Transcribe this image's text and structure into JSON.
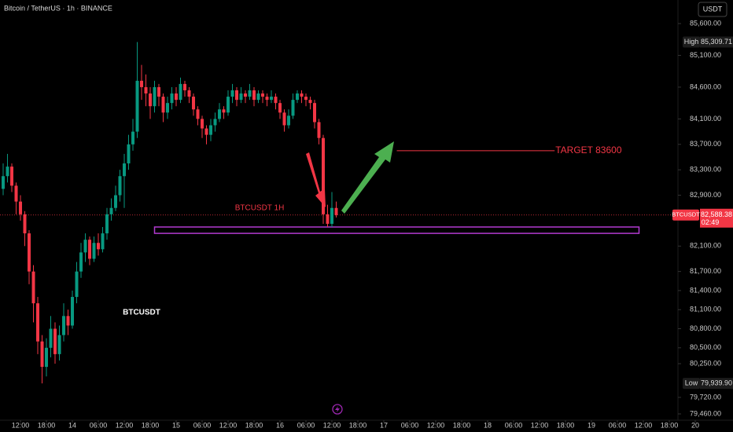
{
  "chart_data": {
    "type": "candlestick",
    "title": "Bitcoin / TetherUS · 1h · BINANCE",
    "currency": "USDT",
    "symbol_label": "BTCUSDT",
    "annotations": {
      "chart_label": "BTCUSDT",
      "timeframe_label": "BTCUSDT 1H",
      "target": {
        "label": "TARGET 83600",
        "value": 83600,
        "x": [
          91,
          127.5
        ]
      },
      "zone": {
        "y": [
          82300,
          82400
        ],
        "x": [
          35,
          147
        ]
      }
    },
    "up_color": "#089981",
    "down_color": "#f23645",
    "open": [
      83000,
      83200,
      83350,
      83050,
      82800,
      82600,
      82300,
      81700,
      81200,
      80600,
      80200,
      80500,
      80800,
      80400,
      80700,
      81000,
      80850,
      81300,
      81700,
      82000,
      82200,
      81900,
      82150,
      82050,
      82300,
      82600,
      82700,
      82900,
      83200,
      83400,
      83700,
      83900,
      84700,
      84600,
      84500,
      84300,
      84600,
      84450,
      84200,
      84350,
      84500,
      84400,
      84650,
      84550,
      84450,
      84250,
      84100,
      83950,
      83850,
      84000,
      84100,
      84250,
      84200,
      84450,
      84550,
      84400,
      84500,
      84450,
      84550,
      84400,
      84500,
      84450,
      84400,
      84450,
      84350,
      84200,
      84000,
      84150,
      84400,
      84500,
      84450,
      84400,
      84350,
      84050,
      83800,
      82600,
      82450,
      82700
    ],
    "high": [
      83400,
      83550,
      83400,
      83100,
      82900,
      82650,
      82350,
      81800,
      81300,
      80700,
      80650,
      81000,
      80900,
      80850,
      81200,
      81100,
      81400,
      81850,
      82150,
      82300,
      82250,
      82250,
      82300,
      82400,
      82700,
      82850,
      83050,
      83300,
      83550,
      83850,
      84100,
      85309.71,
      84950,
      84800,
      84600,
      84700,
      84650,
      84500,
      84450,
      84600,
      84600,
      84750,
      84700,
      84600,
      84500,
      84300,
      84150,
      84000,
      84100,
      84200,
      84350,
      84300,
      84550,
      84650,
      84600,
      84600,
      84550,
      84650,
      84600,
      84550,
      84550,
      84500,
      84550,
      84500,
      84400,
      84250,
      84250,
      84500,
      84550,
      84550,
      84500,
      84450,
      84400,
      84100,
      83850,
      82750,
      82950,
      82800
    ],
    "low": [
      82900,
      83100,
      82950,
      82600,
      82500,
      82100,
      81500,
      80900,
      80400,
      79939.9,
      80050,
      80350,
      80250,
      80300,
      80600,
      80700,
      80800,
      81200,
      81600,
      81850,
      81800,
      81850,
      81950,
      82000,
      82200,
      82500,
      82650,
      82800,
      82700,
      83300,
      83600,
      83800,
      84400,
      84300,
      84100,
      84200,
      84300,
      84050,
      84100,
      84250,
      84300,
      84350,
      84450,
      84350,
      84150,
      84000,
      83800,
      83700,
      83750,
      83900,
      84050,
      84100,
      84150,
      84350,
      84300,
      84350,
      84350,
      84400,
      84300,
      84350,
      84350,
      84300,
      84350,
      84250,
      84100,
      83900,
      83950,
      84100,
      84350,
      84350,
      84300,
      84250,
      83950,
      83700,
      82450,
      82400,
      82400,
      82550
    ],
    "close": [
      83200,
      83350,
      83050,
      82800,
      82600,
      82300,
      81700,
      81200,
      80600,
      80200,
      80500,
      80800,
      80400,
      80700,
      81000,
      80850,
      81300,
      81700,
      82000,
      82200,
      81900,
      82150,
      82050,
      82300,
      82600,
      82700,
      82900,
      83200,
      83400,
      83700,
      83900,
      84700,
      84600,
      84500,
      84300,
      84600,
      84450,
      84200,
      84350,
      84500,
      84400,
      84650,
      84550,
      84450,
      84250,
      84100,
      83950,
      83850,
      84000,
      84100,
      84250,
      84200,
      84450,
      84550,
      84400,
      84500,
      84450,
      84550,
      84400,
      84500,
      84450,
      84400,
      84450,
      84350,
      84200,
      84000,
      84150,
      84400,
      84500,
      84450,
      84400,
      84350,
      84050,
      83800,
      82600,
      82450,
      82700,
      82588.38
    ],
    "last_price": {
      "value": 82588.38,
      "label": "82,588.38",
      "countdown": "02:49"
    },
    "high_marker": {
      "tag": "High",
      "value": 85309.71,
      "label": "85,309.71"
    },
    "low_marker": {
      "tag": "Low",
      "value": 79939.9,
      "label": "79,939.90"
    },
    "ylim": [
      79360.8,
      85970.6
    ],
    "yticks": [
      {
        "value": 85600,
        "label": "85,600.00"
      },
      {
        "value": 85100,
        "label": "85,100.00"
      },
      {
        "value": 84600,
        "label": "84,600.00"
      },
      {
        "value": 84100,
        "label": "84,100.00"
      },
      {
        "value": 83700,
        "label": "83,700.00"
      },
      {
        "value": 83300,
        "label": "83,300.00"
      },
      {
        "value": 82900,
        "label": "82,900.00"
      },
      {
        "value": 82100,
        "label": "82,100.00"
      },
      {
        "value": 81700,
        "label": "81,700.00"
      },
      {
        "value": 81400,
        "label": "81,400.00"
      },
      {
        "value": 81100,
        "label": "81,100.00"
      },
      {
        "value": 80800,
        "label": "80,800.00"
      },
      {
        "value": 80500,
        "label": "80,500.00"
      },
      {
        "value": 80250,
        "label": "80,250.00"
      },
      {
        "value": 79720,
        "label": "79,720.00"
      },
      {
        "value": 79460,
        "label": "79,460.00"
      }
    ],
    "xlim": [
      -0.73,
      168.73
    ],
    "xticks": [
      {
        "value": 4,
        "label": "12:00"
      },
      {
        "value": 10,
        "label": "18:00"
      },
      {
        "value": 16,
        "label": "14"
      },
      {
        "value": 22,
        "label": "06:00"
      },
      {
        "value": 28,
        "label": "12:00"
      },
      {
        "value": 34,
        "label": "18:00"
      },
      {
        "value": 40,
        "label": "15"
      },
      {
        "value": 46,
        "label": "06:00"
      },
      {
        "value": 52,
        "label": "12:00"
      },
      {
        "value": 58,
        "label": "18:00"
      },
      {
        "value": 64,
        "label": "16"
      },
      {
        "value": 70,
        "label": "06:00"
      },
      {
        "value": 76,
        "label": "12:00"
      },
      {
        "value": 82,
        "label": "18:00"
      },
      {
        "value": 88,
        "label": "17"
      },
      {
        "value": 94,
        "label": "06:00"
      },
      {
        "value": 100,
        "label": "12:00"
      },
      {
        "value": 106,
        "label": "18:00"
      },
      {
        "value": 112,
        "label": "18"
      },
      {
        "value": 118,
        "label": "06:00"
      },
      {
        "value": 124,
        "label": "12:00"
      },
      {
        "value": 130,
        "label": "18:00"
      },
      {
        "value": 136,
        "label": "19"
      },
      {
        "value": 142,
        "label": "06:00"
      },
      {
        "value": 148,
        "label": "12:00"
      },
      {
        "value": 154,
        "label": "18:00"
      },
      {
        "value": 160,
        "label": "20"
      }
    ],
    "grid": false
  }
}
